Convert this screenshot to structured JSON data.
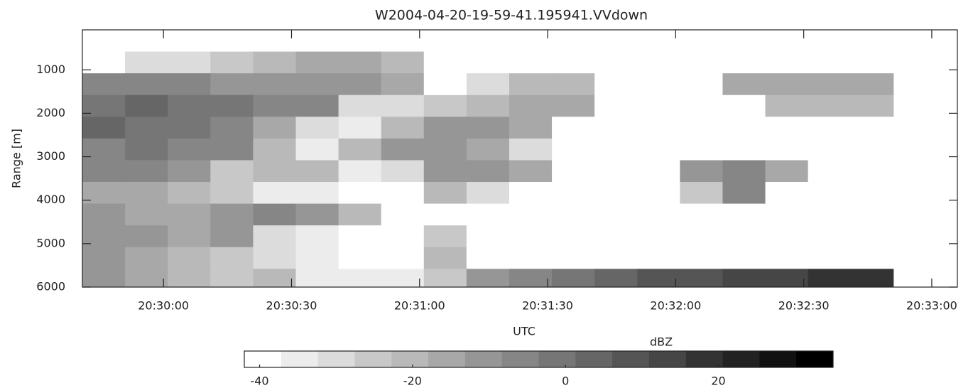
{
  "chart_data": {
    "type": "heatmap",
    "title": "W2004-04-20-19-59-41.195941.VVdown",
    "x_label": "UTC",
    "y_label": "Range [m]",
    "colorbar_label": "dBZ",
    "xlim": [
      73781,
      73986
    ],
    "xticks": [
      {
        "value": 73800,
        "label": "20:30:00"
      },
      {
        "value": 73830,
        "label": "20:30:30"
      },
      {
        "value": 73860,
        "label": "20:31:00"
      },
      {
        "value": 73890,
        "label": "20:31:30"
      },
      {
        "value": 73920,
        "label": "20:32:00"
      },
      {
        "value": 73950,
        "label": "20:32:30"
      },
      {
        "value": 73980,
        "label": "20:33:00"
      }
    ],
    "ylim": [
      80,
      6000
    ],
    "y_reversed": true,
    "yticks": [
      1000,
      2000,
      3000,
      4000,
      5000,
      6000
    ],
    "x": [
      73786,
      73796,
      73806,
      73816,
      73826,
      73836,
      73846,
      73856,
      73866,
      73876,
      73886,
      73896,
      73906,
      73916,
      73926,
      73936,
      73946,
      73956,
      73966
    ],
    "y": [
      330,
      830,
      1330,
      1830,
      2330,
      2830,
      3330,
      3830,
      4330,
      4830,
      5330,
      5830
    ],
    "z": [
      [
        -38,
        -38,
        -38,
        -38,
        -38,
        -38,
        -38,
        -38,
        -38,
        -38,
        -38,
        -38,
        -38,
        -38,
        -38,
        -38,
        -38,
        -38,
        -38
      ],
      [
        -38,
        -30,
        -30,
        -25,
        -20,
        -15,
        -15,
        -20,
        -38,
        -38,
        -38,
        -38,
        -38,
        -38,
        -38,
        -38,
        -38,
        -38,
        -38
      ],
      [
        -8,
        -5,
        -8,
        -10,
        -10,
        -12,
        -12,
        -15,
        -38,
        -30,
        -20,
        -18,
        -38,
        -38,
        -38,
        -14,
        -14,
        -14,
        -14
      ],
      [
        0,
        2,
        0,
        -2,
        -5,
        -8,
        -30,
        -30,
        -25,
        -18,
        -14,
        -15,
        -38,
        -38,
        -38,
        -38,
        -20,
        -20,
        -18
      ],
      [
        2,
        0,
        -2,
        -5,
        -15,
        -30,
        -35,
        -20,
        -12,
        -12,
        -14,
        -38,
        -38,
        -38,
        -38,
        -38,
        -38,
        -38,
        -38
      ],
      [
        -5,
        -3,
        -5,
        -8,
        -20,
        -35,
        -20,
        -12,
        -12,
        -15,
        -30,
        -38,
        -38,
        -38,
        -38,
        -38,
        -38,
        -38,
        -38
      ],
      [
        -8,
        -5,
        -10,
        -25,
        -18,
        -20,
        -35,
        -30,
        -12,
        -10,
        -14,
        -38,
        -38,
        -38,
        -10,
        -8,
        -15,
        -38,
        -38
      ],
      [
        -15,
        -15,
        -18,
        -25,
        -35,
        -35,
        -38,
        -38,
        -20,
        -30,
        -38,
        -38,
        -38,
        -38,
        -25,
        -5,
        -38,
        -38,
        -38
      ],
      [
        -10,
        -15,
        -15,
        -12,
        -8,
        -10,
        -20,
        -38,
        -38,
        -38,
        -38,
        -38,
        -38,
        -38,
        -38,
        -38,
        -38,
        -38,
        -38
      ],
      [
        -10,
        -12,
        -15,
        -12,
        -30,
        -35,
        -38,
        -38,
        -25,
        -38,
        -38,
        -38,
        -38,
        -38,
        -38,
        -38,
        -38,
        -38,
        -38
      ],
      [
        -12,
        -15,
        -20,
        -25,
        -30,
        -35,
        -38,
        -38,
        -20,
        -38,
        -38,
        -38,
        -38,
        -38,
        -38,
        -38,
        -38,
        -38,
        -38
      ],
      [
        -12,
        -15,
        -20,
        -25,
        -20,
        -35,
        -35,
        -35,
        -25,
        -10,
        -5,
        0,
        5,
        8,
        10,
        12,
        15,
        18,
        20
      ]
    ],
    "clim": [
      -42,
      35
    ],
    "colorbar_ticks": [
      -40,
      -20,
      0,
      20
    ],
    "colors": [
      "#ffffff",
      "#ececec",
      "#dcdcdc",
      "#c8c8c8",
      "#b9b9b9",
      "#a8a8a8",
      "#969696",
      "#868686",
      "#767676",
      "#666666",
      "#555555",
      "#464646",
      "#333333",
      "#222222",
      "#111111",
      "#000000"
    ]
  }
}
